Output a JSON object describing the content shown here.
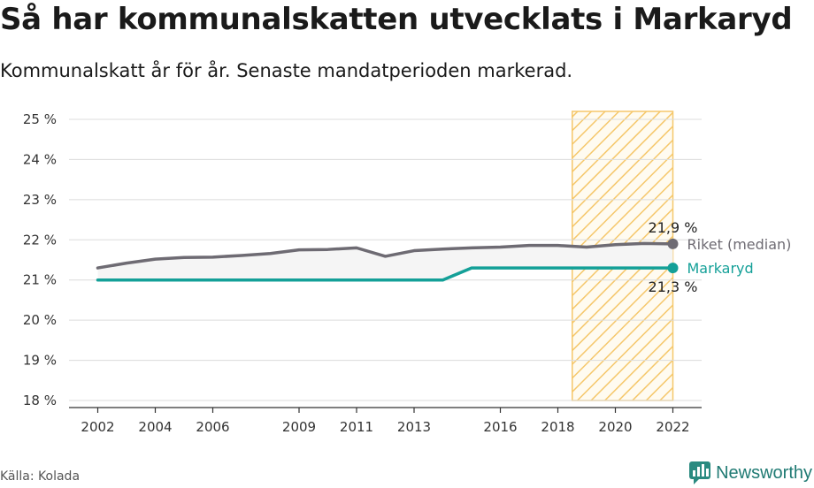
{
  "title": "Så har kommunalskatten utvecklats i Markaryd",
  "subtitle": "Kommunalskatt år för år. Senaste mandatperioden markerad.",
  "source": "Källa: Kolada",
  "brand": {
    "name": "Newsworthy",
    "icon": "newsworthy-chat-bar-icon",
    "color": "#2a8a80"
  },
  "chart_data": {
    "type": "line",
    "title": "Så har kommunalskatten utvecklats i Markaryd",
    "xlabel": "",
    "ylabel": "",
    "x": [
      2002,
      2003,
      2004,
      2005,
      2006,
      2007,
      2008,
      2009,
      2010,
      2011,
      2012,
      2013,
      2014,
      2015,
      2016,
      2017,
      2018,
      2019,
      2020,
      2021,
      2022
    ],
    "series": [
      {
        "name": "Riket (median)",
        "color": "#6e6b73",
        "values": [
          21.3,
          21.42,
          21.52,
          21.56,
          21.57,
          21.61,
          21.66,
          21.75,
          21.76,
          21.8,
          21.59,
          21.73,
          21.77,
          21.8,
          21.82,
          21.86,
          21.86,
          21.82,
          21.88,
          21.91,
          21.9
        ],
        "end_label": "21,9 %"
      },
      {
        "name": "Markaryd",
        "color": "#14a098",
        "values": [
          21.0,
          21.0,
          21.0,
          21.0,
          21.0,
          21.0,
          21.0,
          21.0,
          21.0,
          21.0,
          21.0,
          21.0,
          21.0,
          21.3,
          21.3,
          21.3,
          21.3,
          21.3,
          21.3,
          21.3,
          21.3
        ],
        "end_label": "21,3 %"
      }
    ],
    "xlim": [
      2001.0,
      2023.0
    ],
    "ylim": [
      18,
      25
    ],
    "x_ticks": [
      2002,
      2004,
      2006,
      2009,
      2011,
      2013,
      2016,
      2018,
      2020,
      2022
    ],
    "x_tick_labels": [
      "2002",
      "2004",
      "2006",
      "2009",
      "2011",
      "2013",
      "2016",
      "2018",
      "2020",
      "2022"
    ],
    "y_ticks": [
      18,
      19,
      20,
      21,
      22,
      23,
      24,
      25
    ],
    "y_tick_labels": [
      "18 %",
      "19 %",
      "20 %",
      "21 %",
      "22 %",
      "23 %",
      "24 %",
      "25 %"
    ],
    "highlight_period": {
      "from": 2018.5,
      "to": 2022,
      "color": "#f5c76a"
    },
    "fill_between_color": "#f5f5f5",
    "grid": true,
    "legend": "inline-right"
  }
}
